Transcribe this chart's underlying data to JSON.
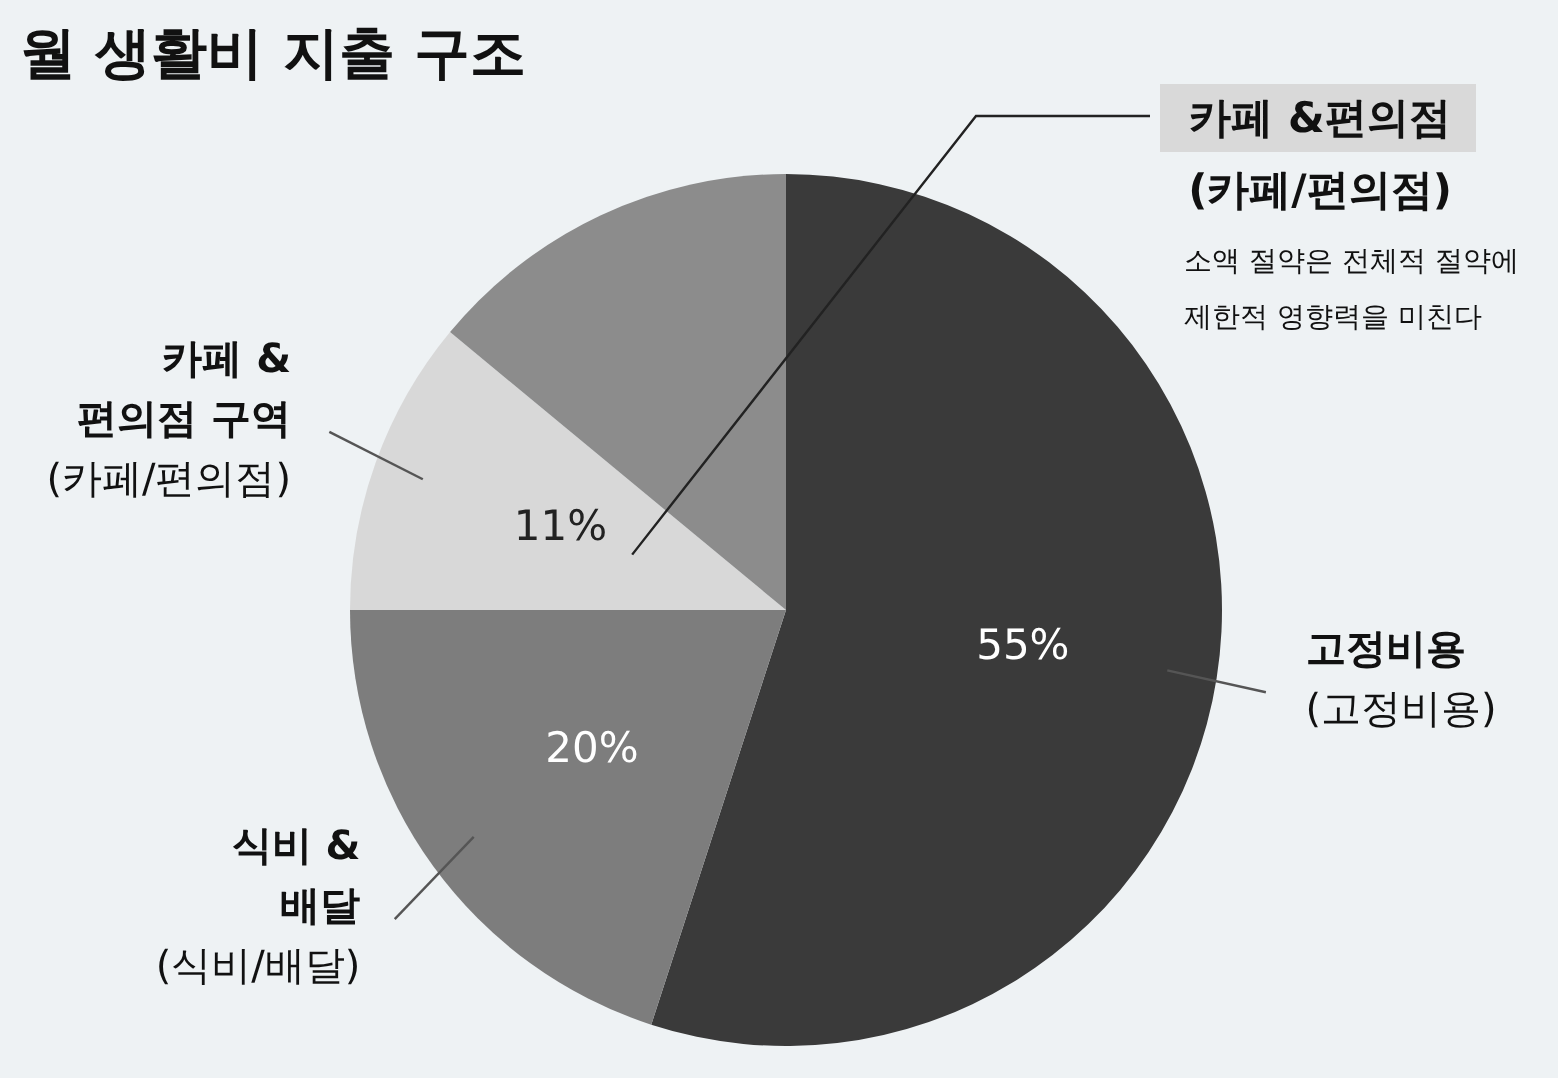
{
  "chart_data": {
    "type": "pie",
    "title": "월 생활비 지출 구조",
    "categories": [
      "고정비용\n(고정비용)",
      "식비 &\n배달\n(식비/배달)",
      "카페 &\n편의점 구역\n(카페/편의점)",
      null
    ],
    "values": [
      55,
      20,
      11,
      14
    ],
    "colors": [
      "#3a3a3a",
      "#7d7d7d",
      "#d8d8d8",
      "#8c8c8c"
    ],
    "value_labels": [
      "55%",
      "20%",
      "11%",
      null
    ],
    "annotations": [
      "카페 &편의점\n(카페/편의점)",
      "소액 절약은 전체적 절약에\n제한적 영향력을 미친다"
    ]
  }
}
